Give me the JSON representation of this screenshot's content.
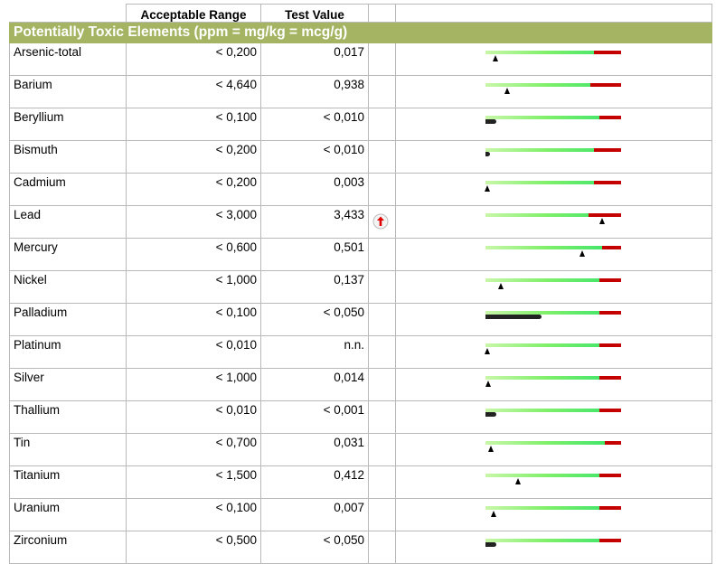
{
  "header": {
    "acceptable_range": "Acceptable Range",
    "test_value": "Test Value"
  },
  "section": {
    "title": "Potentially Toxic Elements (ppm = mg/kg = mcg/g)"
  },
  "colors": {
    "section_bg": "#a5b463",
    "gauge_green": "#33e26a",
    "gauge_red": "#c40000",
    "flag_red": "#e00000"
  },
  "rows": [
    {
      "element": "Arsenic-total",
      "range": "< 0,200",
      "value": "0,017",
      "flag": "",
      "marker_fraction": 0.07,
      "marker_type": "triangle",
      "red_start": 0.8
    },
    {
      "element": "Barium",
      "range": "< 4,640",
      "value": "0,938",
      "flag": "",
      "marker_fraction": 0.16,
      "marker_type": "triangle",
      "red_start": 0.77
    },
    {
      "element": "Beryllium",
      "range": "< 0,100",
      "value": "< 0,010",
      "flag": "",
      "marker_fraction": 0.08,
      "marker_type": "pill",
      "red_start": 0.84
    },
    {
      "element": "Bismuth",
      "range": "< 0,200",
      "value": "< 0,010",
      "flag": "",
      "marker_fraction": 0.03,
      "marker_type": "pill",
      "red_start": 0.8
    },
    {
      "element": "Cadmium",
      "range": "< 0,200",
      "value": "0,003",
      "flag": "",
      "marker_fraction": 0.01,
      "marker_type": "triangle",
      "red_start": 0.8
    },
    {
      "element": "Lead",
      "range": "< 3,000",
      "value": "3,433",
      "flag": "high-arrow-icon",
      "marker_fraction": 0.86,
      "marker_type": "triangle",
      "red_start": 0.76
    },
    {
      "element": "Mercury",
      "range": "< 0,600",
      "value": "0,501",
      "flag": "",
      "marker_fraction": 0.71,
      "marker_type": "triangle",
      "red_start": 0.86
    },
    {
      "element": "Nickel",
      "range": "< 1,000",
      "value": "0,137",
      "flag": "",
      "marker_fraction": 0.11,
      "marker_type": "triangle",
      "red_start": 0.84
    },
    {
      "element": "Palladium",
      "range": "< 0,100",
      "value": "< 0,050",
      "flag": "",
      "marker_fraction": 0.41,
      "marker_type": "pill",
      "red_start": 0.84
    },
    {
      "element": "Platinum",
      "range": "< 0,010",
      "value": "n.n.",
      "flag": "",
      "marker_fraction": 0.01,
      "marker_type": "triangle",
      "red_start": 0.84
    },
    {
      "element": "Silver",
      "range": "< 1,000",
      "value": "0,014",
      "flag": "",
      "marker_fraction": 0.02,
      "marker_type": "triangle",
      "red_start": 0.84
    },
    {
      "element": "Thallium",
      "range": "< 0,010",
      "value": "< 0,001",
      "flag": "",
      "marker_fraction": 0.08,
      "marker_type": "pill",
      "red_start": 0.84
    },
    {
      "element": "Tin",
      "range": "< 0,700",
      "value": "0,031",
      "flag": "",
      "marker_fraction": 0.04,
      "marker_type": "triangle",
      "red_start": 0.88
    },
    {
      "element": "Titanium",
      "range": "< 1,500",
      "value": "0,412",
      "flag": "",
      "marker_fraction": 0.24,
      "marker_type": "triangle",
      "red_start": 0.84
    },
    {
      "element": "Uranium",
      "range": "< 0,100",
      "value": "0,007",
      "flag": "",
      "marker_fraction": 0.06,
      "marker_type": "triangle",
      "red_start": 0.84
    },
    {
      "element": "Zirconium",
      "range": "< 0,500",
      "value": "< 0,050",
      "flag": "",
      "marker_fraction": 0.08,
      "marker_type": "pill",
      "red_start": 0.84
    }
  ]
}
